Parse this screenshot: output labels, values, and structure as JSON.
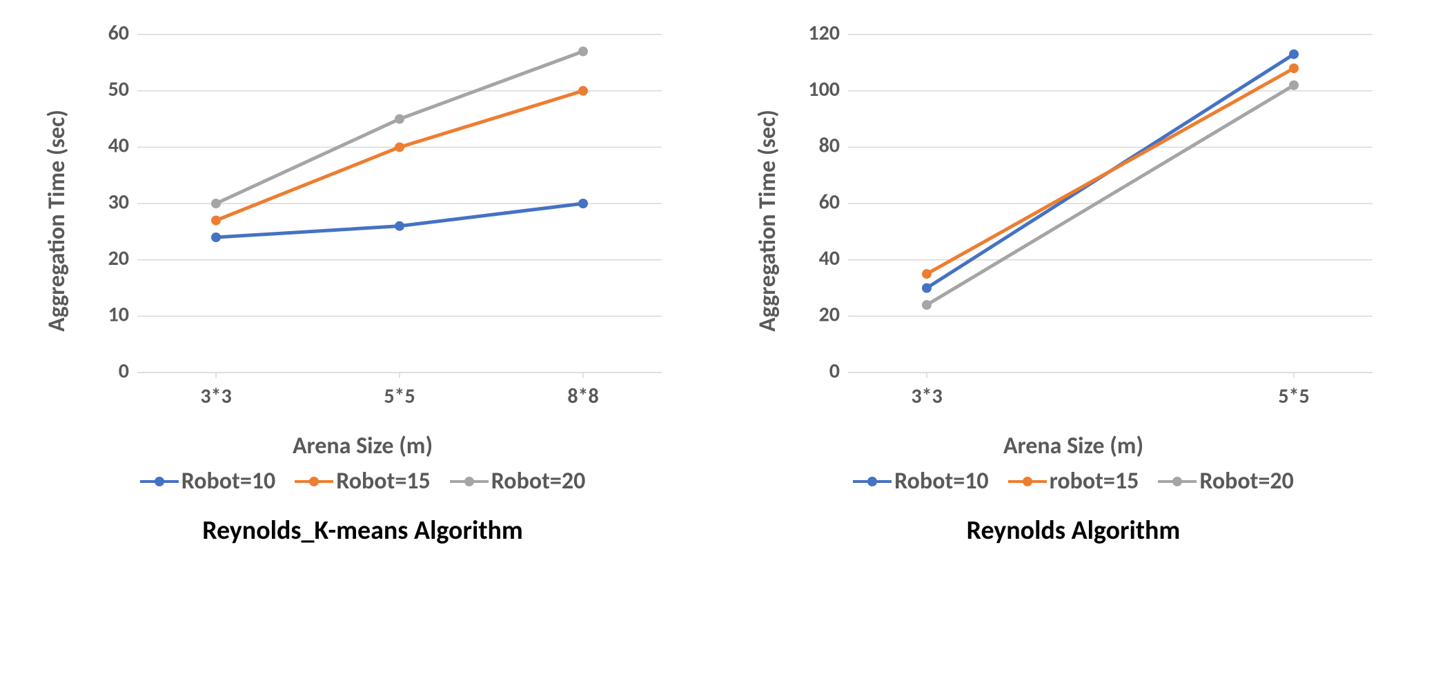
{
  "background_color": "#ffffff",
  "grid_color": "#d9d9d9",
  "axis_color": "#d9d9d9",
  "tick_font_color": "#595959",
  "label_font_color": "#595959",
  "title_font_color": "#000000",
  "tick_font_size": 30,
  "label_font_size": 34,
  "title_font_size": 38,
  "line_width": 5,
  "marker_size": 7,
  "line_colors": {
    "robot10": "#4472c4",
    "robot15": "#ed7d31",
    "robot20": "#a5a5a5"
  },
  "left": {
    "type": "line",
    "title": "Reynolds_K-means Algorithm",
    "xlabel": "Arena Size (m)",
    "ylabel": "Aggregation Time (sec)",
    "categories": [
      "3*3",
      "5*5",
      "8*8"
    ],
    "ylim": [
      0,
      60
    ],
    "ytick_step": 10,
    "series": [
      {
        "name": "Robot=10",
        "color_key": "robot10",
        "values": [
          24,
          26,
          30
        ]
      },
      {
        "name": "Robot=15",
        "color_key": "robot15",
        "values": [
          27,
          40,
          50
        ]
      },
      {
        "name": "Robot=20",
        "color_key": "robot20",
        "values": [
          30,
          45,
          57
        ]
      }
    ],
    "legend": [
      "Robot=10",
      "Robot=15",
      "Robot=20"
    ]
  },
  "right": {
    "type": "line",
    "title": "Reynolds Algorithm",
    "xlabel": "Arena Size (m)",
    "ylabel": "Aggregation Time (sec)",
    "categories": [
      "3*3",
      "5*5"
    ],
    "ylim": [
      0,
      120
    ],
    "ytick_step": 20,
    "series": [
      {
        "name": "Robot=10",
        "color_key": "robot10",
        "values": [
          30,
          113
        ]
      },
      {
        "name": "robot=15",
        "color_key": "robot15",
        "values": [
          35,
          108
        ]
      },
      {
        "name": "Robot=20",
        "color_key": "robot20",
        "values": [
          24,
          102
        ]
      }
    ],
    "legend": [
      "Robot=10",
      "robot=15",
      "Robot=20"
    ]
  }
}
